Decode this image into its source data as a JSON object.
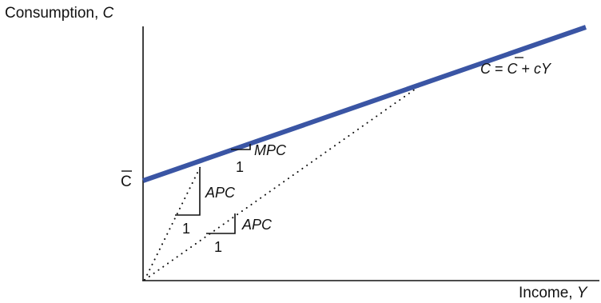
{
  "axes": {
    "y_title": {
      "text": "Consumption, ",
      "var": "C"
    },
    "x_title": {
      "text": "Income, ",
      "var": "Y"
    },
    "intercept": {
      "symbol": "C"
    }
  },
  "line": {
    "equation": {
      "lhs": "C",
      "eq": " = ",
      "cbar": "C",
      "plus": " + ",
      "c": "c",
      "y": "Y"
    },
    "color": "#3a55a4"
  },
  "annotations": {
    "mpc": {
      "label": "MPC",
      "run": "1"
    },
    "apc_steep": {
      "label": "APC",
      "run": "1"
    },
    "apc_shallow": {
      "label": "APC",
      "run": "1"
    }
  },
  "style": {
    "guide_lines": "dotted",
    "axis_color": "#111111"
  }
}
